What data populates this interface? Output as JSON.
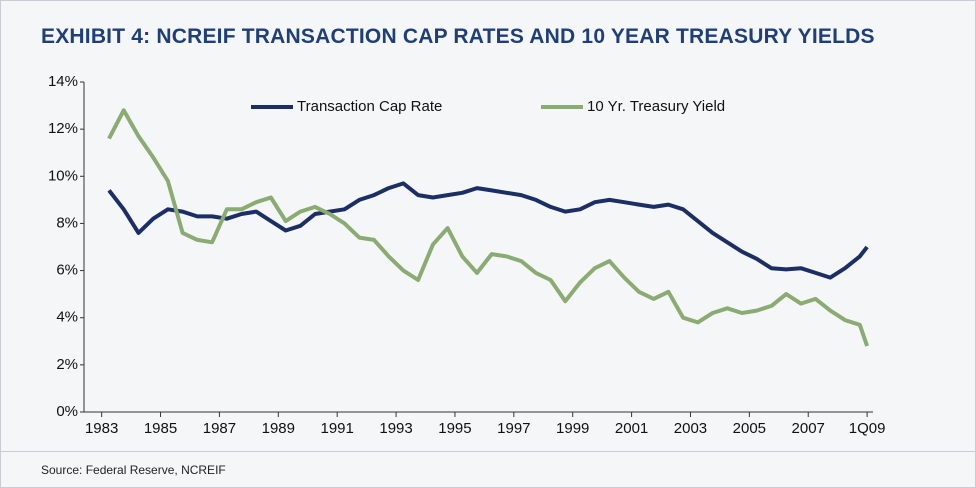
{
  "chart_data": {
    "type": "line",
    "title": "EXHIBIT 4: NCREIF TRANSACTION CAP RATES AND 10 YEAR TREASURY YIELDS",
    "source": "Source: Federal Reserve, NCREIF",
    "x": [
      1983.25,
      1983.75,
      1984.25,
      1984.75,
      1985.25,
      1985.75,
      1986.25,
      1986.75,
      1987.25,
      1987.75,
      1988.25,
      1988.75,
      1989.25,
      1989.75,
      1990.25,
      1990.75,
      1991.25,
      1991.75,
      1992.25,
      1992.75,
      1993.25,
      1993.75,
      1994.25,
      1994.75,
      1995.25,
      1995.75,
      1996.25,
      1996.75,
      1997.25,
      1997.75,
      1998.25,
      1998.75,
      1999.25,
      1999.75,
      2000.25,
      2000.75,
      2001.25,
      2001.75,
      2002.25,
      2002.75,
      2003.25,
      2003.75,
      2004.25,
      2004.75,
      2005.25,
      2005.75,
      2006.25,
      2006.75,
      2007.25,
      2007.75,
      2008.25,
      2008.75,
      2009.0
    ],
    "series": [
      {
        "name": "Transaction Cap Rate",
        "color": "#1b2f66",
        "values": [
          9.4,
          8.6,
          7.6,
          8.2,
          8.6,
          8.5,
          8.3,
          8.3,
          8.2,
          8.4,
          8.5,
          8.1,
          7.7,
          7.9,
          8.4,
          8.5,
          8.6,
          9.0,
          9.2,
          9.5,
          9.7,
          9.2,
          9.1,
          9.2,
          9.3,
          9.5,
          9.4,
          9.3,
          9.2,
          9.0,
          8.7,
          8.5,
          8.6,
          8.9,
          9.0,
          8.9,
          8.8,
          8.7,
          8.8,
          8.6,
          8.1,
          7.6,
          7.2,
          6.8,
          6.5,
          6.1,
          6.05,
          6.1,
          5.9,
          5.7,
          6.1,
          6.6,
          7.0
        ]
      },
      {
        "name": "10 Yr. Treasury Yield",
        "color": "#8aac72",
        "values": [
          11.6,
          12.8,
          11.7,
          10.8,
          9.8,
          7.6,
          7.3,
          7.2,
          8.6,
          8.6,
          8.9,
          9.1,
          8.1,
          8.5,
          8.7,
          8.4,
          8.0,
          7.4,
          7.3,
          6.6,
          6.0,
          5.6,
          7.1,
          7.8,
          6.6,
          5.9,
          6.7,
          6.6,
          6.4,
          5.9,
          5.6,
          4.7,
          5.5,
          6.1,
          6.4,
          5.7,
          5.1,
          4.8,
          5.1,
          4.0,
          3.8,
          4.2,
          4.4,
          4.2,
          4.3,
          4.5,
          5.0,
          4.6,
          4.8,
          4.3,
          3.9,
          3.7,
          2.8
        ]
      }
    ],
    "xlim": [
      1982.4,
      2009.2
    ],
    "xticks": [
      1983,
      1985,
      1987,
      1989,
      1991,
      1993,
      1995,
      1997,
      1999,
      2001,
      2003,
      2005,
      2007,
      {
        "value": 2009,
        "label": "1Q09"
      }
    ],
    "ylim": [
      0,
      14
    ],
    "yticks": [
      {
        "value": 0,
        "label": "0%"
      },
      {
        "value": 2,
        "label": "2%"
      },
      {
        "value": 4,
        "label": "4%"
      },
      {
        "value": 6,
        "label": "6%"
      },
      {
        "value": 8,
        "label": "8%"
      },
      {
        "value": 10,
        "label": "10%"
      },
      {
        "value": 12,
        "label": "12%"
      },
      {
        "value": 14,
        "label": "14%"
      }
    ],
    "legend": "top"
  }
}
